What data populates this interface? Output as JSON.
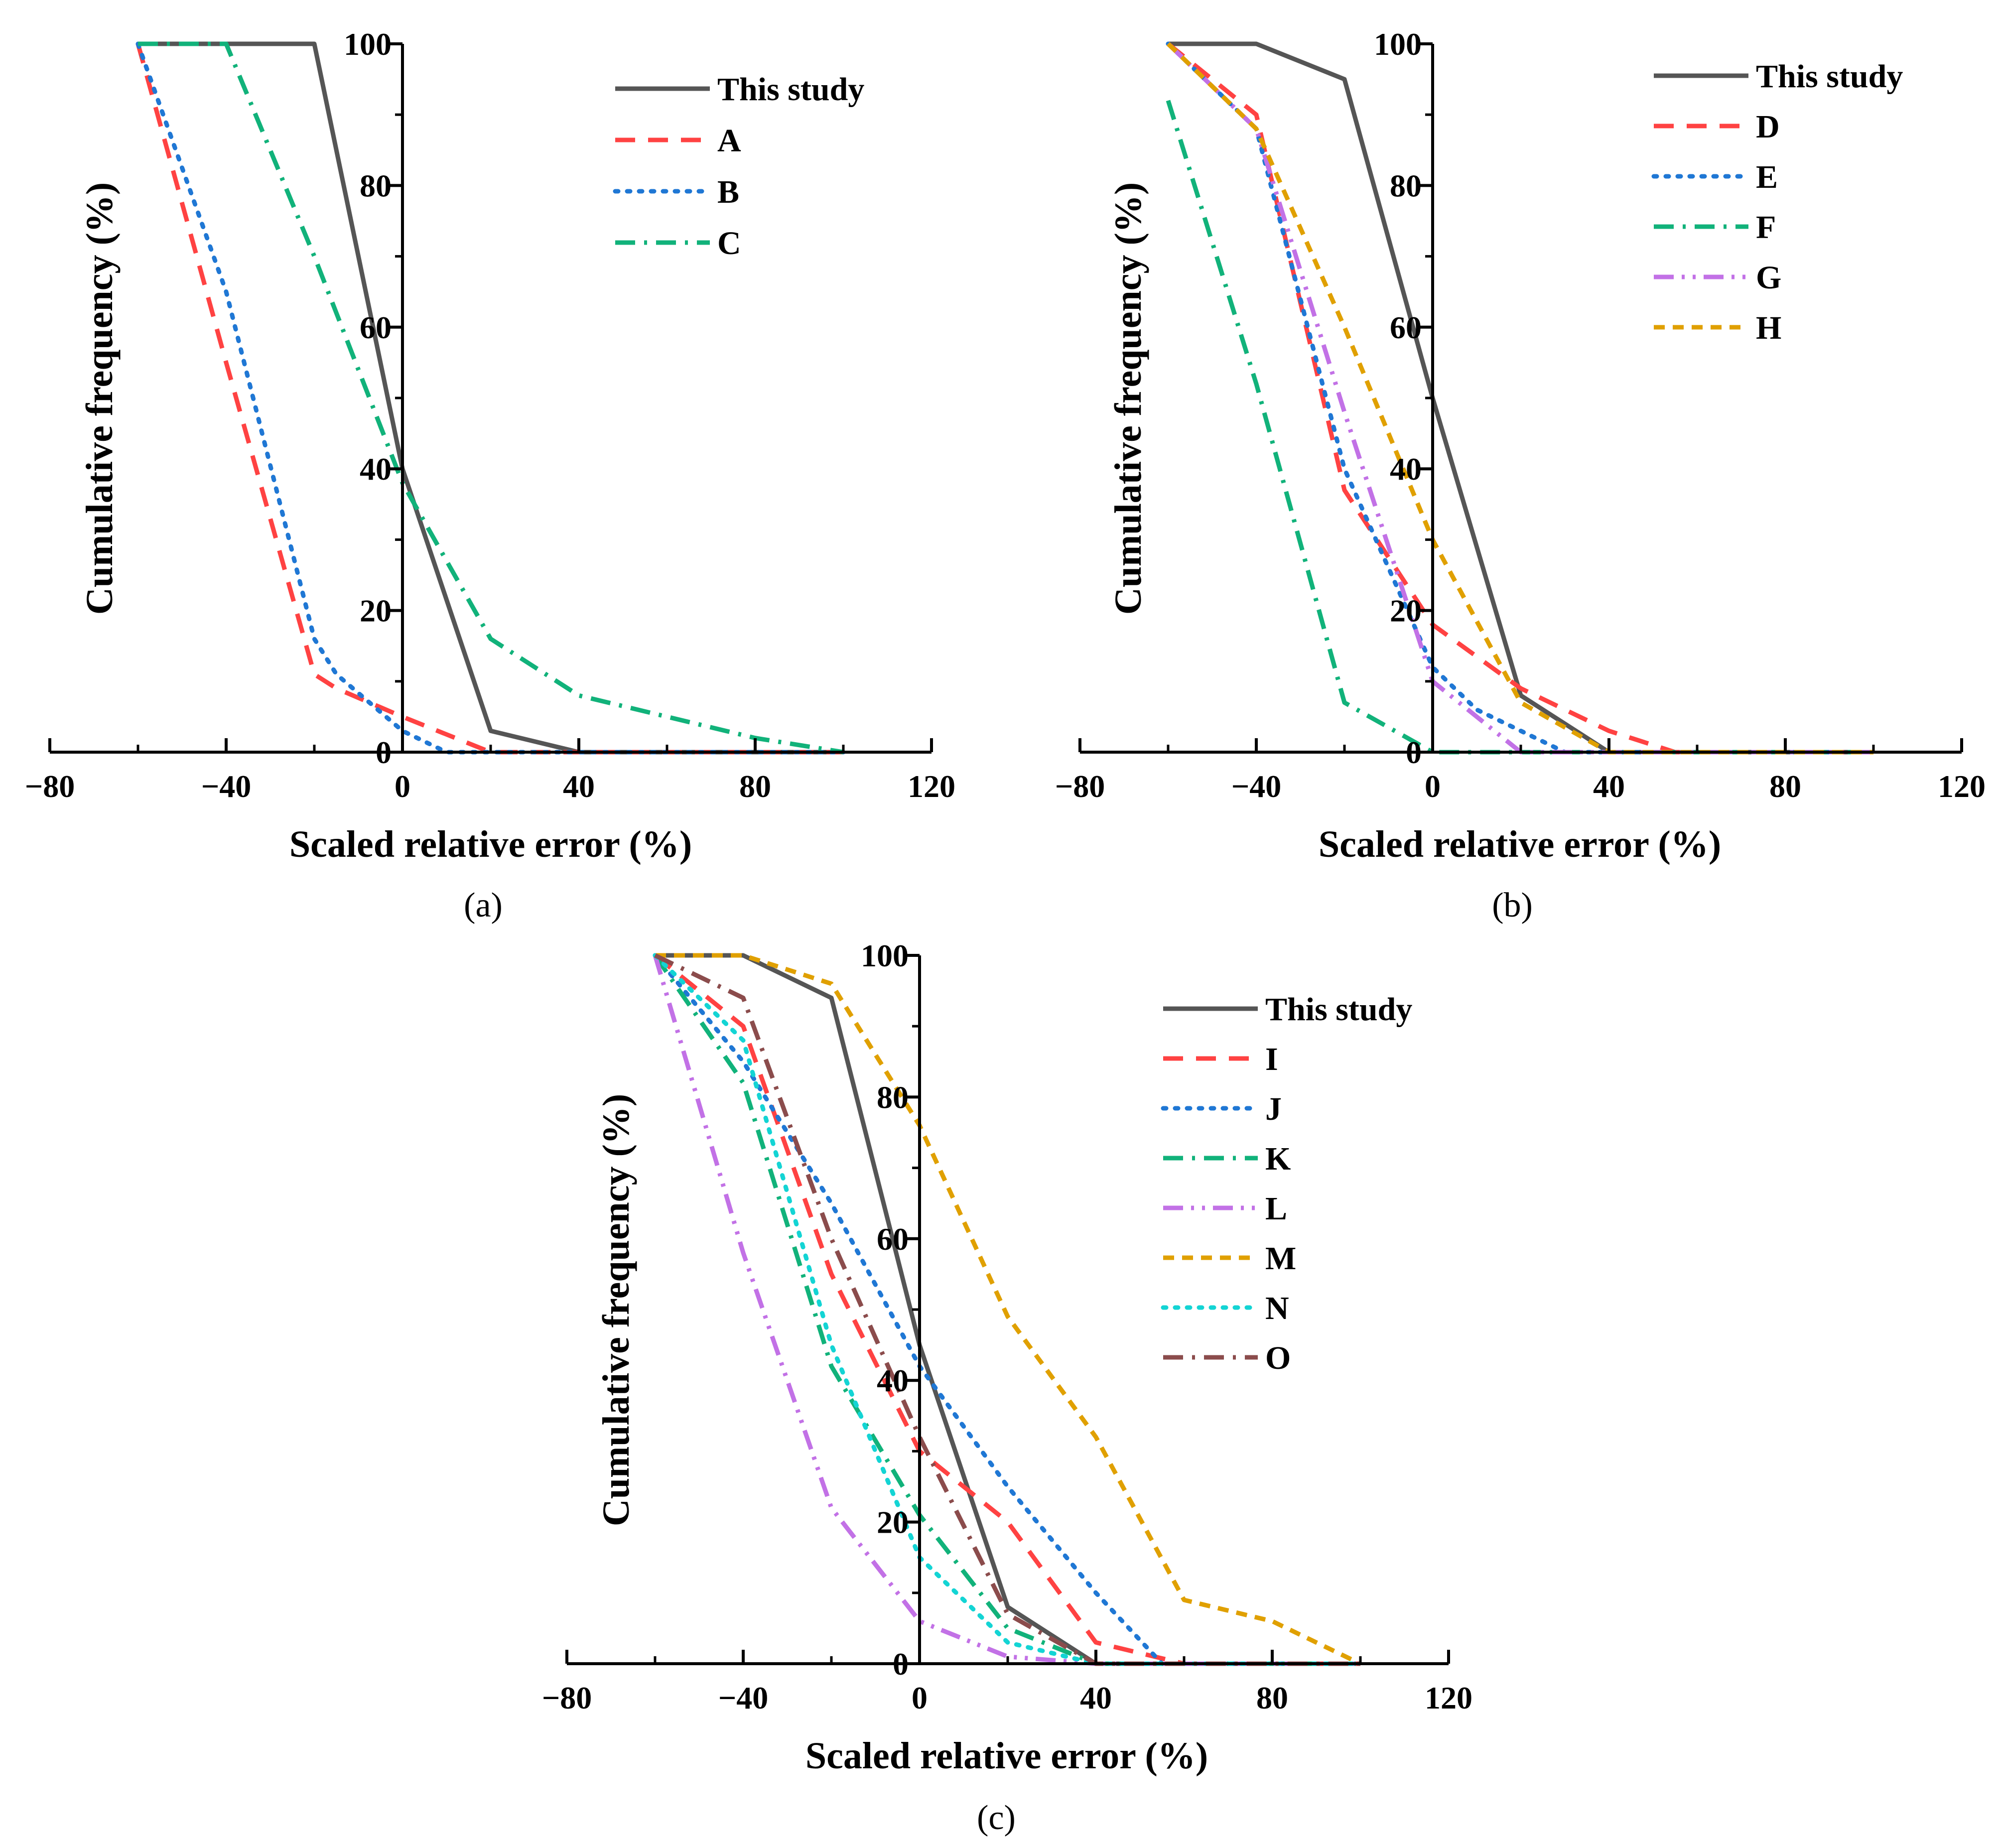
{
  "chart_data": [
    {
      "type": "line",
      "panel_label": "(a)",
      "xlabel": "Scaled relative error (%)",
      "ylabel": "Cumulative frequency (%)",
      "xlim": [
        -80,
        120
      ],
      "ylim": [
        0,
        100
      ],
      "xticks": [
        -80,
        -40,
        0,
        40,
        80,
        120
      ],
      "yticks": [
        0,
        20,
        40,
        60,
        80,
        100
      ],
      "legend_position": "top-right",
      "series": [
        {
          "name": "This study",
          "color": "#555555",
          "dash": "solid",
          "points": [
            [
              -60,
              100
            ],
            [
              -40,
              100
            ],
            [
              -20,
              100
            ],
            [
              0,
              40
            ],
            [
              20,
              3
            ],
            [
              40,
              0
            ],
            [
              60,
              0
            ],
            [
              80,
              0
            ],
            [
              100,
              0
            ]
          ]
        },
        {
          "name": "A",
          "color": "#ff4242",
          "dash": "dash",
          "points": [
            [
              -60,
              100
            ],
            [
              -40,
              55
            ],
            [
              -20,
              11
            ],
            [
              -15,
              9
            ],
            [
              0,
              5
            ],
            [
              20,
              0
            ],
            [
              40,
              0
            ],
            [
              60,
              0
            ],
            [
              80,
              0
            ],
            [
              100,
              0
            ]
          ]
        },
        {
          "name": "B",
          "color": "#1f77d4",
          "dash": "dot",
          "points": [
            [
              -60,
              100
            ],
            [
              -40,
              65
            ],
            [
              -20,
              16
            ],
            [
              -15,
              11
            ],
            [
              0,
              3
            ],
            [
              10,
              0
            ],
            [
              20,
              0
            ],
            [
              40,
              0
            ],
            [
              60,
              0
            ],
            [
              80,
              0
            ],
            [
              100,
              0
            ]
          ]
        },
        {
          "name": "C",
          "color": "#11b27a",
          "dash": "dashdot",
          "points": [
            [
              -60,
              100
            ],
            [
              -40,
              100
            ],
            [
              -20,
              70
            ],
            [
              0,
              38
            ],
            [
              20,
              16
            ],
            [
              40,
              8
            ],
            [
              60,
              5
            ],
            [
              80,
              2
            ],
            [
              100,
              0
            ]
          ]
        }
      ]
    },
    {
      "type": "line",
      "panel_label": "(b)",
      "xlabel": "Scaled relative error (%)",
      "ylabel": "Cumulative frequency (%)",
      "xlim": [
        -80,
        120
      ],
      "ylim": [
        0,
        100
      ],
      "xticks": [
        -80,
        -40,
        0,
        40,
        80,
        120
      ],
      "yticks": [
        0,
        20,
        40,
        60,
        80,
        100
      ],
      "legend_position": "top-right",
      "series": [
        {
          "name": "This study",
          "color": "#555555",
          "dash": "solid",
          "points": [
            [
              -60,
              100
            ],
            [
              -40,
              100
            ],
            [
              -20,
              95
            ],
            [
              0,
              50
            ],
            [
              20,
              8
            ],
            [
              40,
              0
            ],
            [
              60,
              0
            ],
            [
              80,
              0
            ],
            [
              100,
              0
            ]
          ]
        },
        {
          "name": "D",
          "color": "#ff4242",
          "dash": "dash",
          "points": [
            [
              -60,
              100
            ],
            [
              -40,
              90
            ],
            [
              -20,
              37
            ],
            [
              0,
              18
            ],
            [
              20,
              9
            ],
            [
              40,
              3
            ],
            [
              55,
              0
            ],
            [
              60,
              0
            ],
            [
              80,
              0
            ],
            [
              100,
              0
            ]
          ]
        },
        {
          "name": "E",
          "color": "#1f77d4",
          "dash": "dot",
          "points": [
            [
              -60,
              100
            ],
            [
              -40,
              88
            ],
            [
              -20,
              40
            ],
            [
              0,
              12
            ],
            [
              10,
              6
            ],
            [
              20,
              3
            ],
            [
              30,
              0
            ],
            [
              40,
              0
            ],
            [
              60,
              0
            ],
            [
              80,
              0
            ],
            [
              100,
              0
            ]
          ]
        },
        {
          "name": "F",
          "color": "#11b27a",
          "dash": "dashdot",
          "points": [
            [
              -60,
              92
            ],
            [
              -40,
              52
            ],
            [
              -20,
              7
            ],
            [
              0,
              0
            ],
            [
              20,
              0
            ],
            [
              40,
              0
            ],
            [
              60,
              0
            ],
            [
              80,
              0
            ],
            [
              100,
              0
            ]
          ]
        },
        {
          "name": "G",
          "color": "#c271e6",
          "dash": "dashdotdot",
          "points": [
            [
              -60,
              100
            ],
            [
              -40,
              88
            ],
            [
              -20,
              48
            ],
            [
              0,
              10
            ],
            [
              20,
              0
            ],
            [
              40,
              0
            ],
            [
              60,
              0
            ],
            [
              80,
              0
            ],
            [
              100,
              0
            ]
          ]
        },
        {
          "name": "H",
          "color": "#e0a000",
          "dash": "shortdash",
          "points": [
            [
              -60,
              100
            ],
            [
              -40,
              88
            ],
            [
              -20,
              60
            ],
            [
              0,
              30
            ],
            [
              20,
              7
            ],
            [
              40,
              0
            ],
            [
              60,
              0
            ],
            [
              80,
              0
            ],
            [
              100,
              0
            ]
          ]
        }
      ]
    },
    {
      "type": "line",
      "panel_label": "(c)",
      "xlabel": "Scaled relative error (%)",
      "ylabel": "Cumulative frequency (%)",
      "xlim": [
        -80,
        120
      ],
      "ylim": [
        0,
        100
      ],
      "xticks": [
        -80,
        -40,
        0,
        40,
        80,
        120
      ],
      "yticks": [
        0,
        20,
        40,
        60,
        80,
        100
      ],
      "legend_position": "top-right",
      "series": [
        {
          "name": "This study",
          "color": "#555555",
          "dash": "solid",
          "points": [
            [
              -60,
              100
            ],
            [
              -40,
              100
            ],
            [
              -20,
              94
            ],
            [
              0,
              45
            ],
            [
              20,
              8
            ],
            [
              40,
              0
            ],
            [
              60,
              0
            ],
            [
              80,
              0
            ],
            [
              100,
              0
            ]
          ]
        },
        {
          "name": "I",
          "color": "#ff4242",
          "dash": "dash",
          "points": [
            [
              -60,
              100
            ],
            [
              -40,
              90
            ],
            [
              -20,
              55
            ],
            [
              0,
              30
            ],
            [
              20,
              20
            ],
            [
              40,
              3
            ],
            [
              60,
              0
            ],
            [
              80,
              0
            ],
            [
              100,
              0
            ]
          ]
        },
        {
          "name": "J",
          "color": "#1f77d4",
          "dash": "dot",
          "points": [
            [
              -60,
              100
            ],
            [
              -40,
              85
            ],
            [
              -20,
              65
            ],
            [
              0,
              42
            ],
            [
              20,
              25
            ],
            [
              40,
              10
            ],
            [
              55,
              0
            ],
            [
              60,
              0
            ],
            [
              80,
              0
            ],
            [
              100,
              0
            ]
          ]
        },
        {
          "name": "K",
          "color": "#11b27a",
          "dash": "dashdot",
          "points": [
            [
              -60,
              100
            ],
            [
              -40,
              82
            ],
            [
              -20,
              42
            ],
            [
              0,
              21
            ],
            [
              20,
              5
            ],
            [
              40,
              0
            ],
            [
              60,
              0
            ],
            [
              80,
              0
            ],
            [
              100,
              0
            ]
          ]
        },
        {
          "name": "L",
          "color": "#c271e6",
          "dash": "dashdotdot",
          "points": [
            [
              -60,
              100
            ],
            [
              -40,
              58
            ],
            [
              -20,
              22
            ],
            [
              0,
              6
            ],
            [
              20,
              1
            ],
            [
              40,
              0
            ],
            [
              60,
              0
            ],
            [
              80,
              0
            ],
            [
              100,
              0
            ]
          ]
        },
        {
          "name": "M",
          "color": "#e0a000",
          "dash": "shortdash",
          "points": [
            [
              -60,
              100
            ],
            [
              -40,
              100
            ],
            [
              -20,
              96
            ],
            [
              0,
              76
            ],
            [
              20,
              49
            ],
            [
              40,
              32
            ],
            [
              60,
              9
            ],
            [
              80,
              6
            ],
            [
              100,
              0
            ]
          ]
        },
        {
          "name": "N",
          "color": "#13d4d4",
          "dash": "dot",
          "points": [
            [
              -60,
              100
            ],
            [
              -40,
              88
            ],
            [
              -20,
              45
            ],
            [
              0,
              15
            ],
            [
              20,
              3
            ],
            [
              40,
              0
            ],
            [
              60,
              0
            ],
            [
              80,
              0
            ],
            [
              100,
              0
            ]
          ]
        },
        {
          "name": "O",
          "color": "#8b4c4c",
          "dash": "dashdot",
          "points": [
            [
              -60,
              100
            ],
            [
              -40,
              94
            ],
            [
              -20,
              60
            ],
            [
              0,
              32
            ],
            [
              20,
              7
            ],
            [
              40,
              0
            ],
            [
              60,
              0
            ],
            [
              80,
              0
            ],
            [
              100,
              0
            ]
          ]
        }
      ]
    }
  ]
}
